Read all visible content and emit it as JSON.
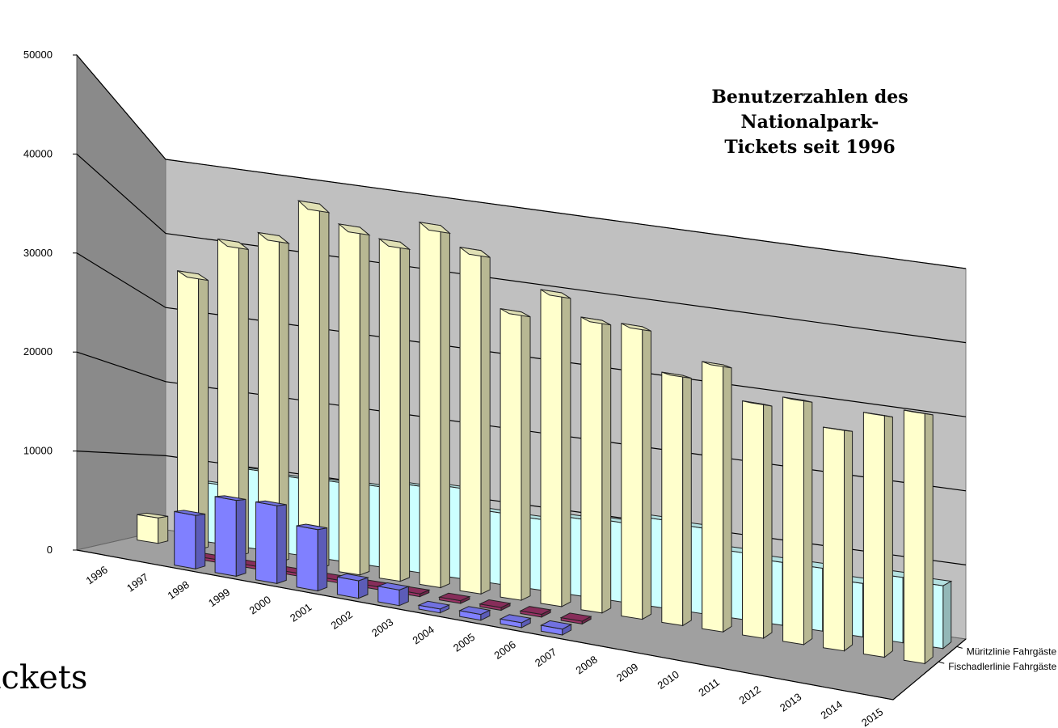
{
  "background_text": "Tickets",
  "chart_data": {
    "type": "bar",
    "variant": "3d-column",
    "title": "Benutzerzahlen des Nationalpark-Tickets seit 1996",
    "title_lines": [
      "Benutzerzahlen des",
      "Nationalpark-",
      "Tickets seit 1996"
    ],
    "categories": [
      "1996",
      "1997",
      "1998",
      "1999",
      "2000",
      "2001",
      "2002",
      "2003",
      "2004",
      "2005",
      "2006",
      "2007",
      "2008",
      "2009",
      "2010",
      "2011",
      "2012",
      "2013",
      "2014",
      "2015"
    ],
    "ylim": [
      0,
      50000
    ],
    "yticks": [
      "0",
      "10000",
      "20000",
      "30000",
      "40000",
      "50000"
    ],
    "grid": true,
    "series": [
      {
        "name": "",
        "color": "#8080ff",
        "values": [
          null,
          null,
          5500,
          7800,
          8000,
          6300,
          1800,
          1600,
          400,
          600,
          500,
          600,
          null,
          null,
          null,
          null,
          null,
          null,
          null,
          null
        ]
      },
      {
        "name": "",
        "color": "#993366",
        "values": [
          null,
          null,
          300,
          300,
          300,
          300,
          300,
          300,
          300,
          300,
          300,
          300,
          null,
          null,
          null,
          null,
          null,
          null,
          null,
          null
        ]
      },
      {
        "name": "Fischadlerlinie Fahrgäste",
        "color": "#ffffcc",
        "values": [
          3000,
          32500,
          37000,
          38500,
          43000,
          41000,
          40000,
          42700,
          40500,
          34000,
          37000,
          34500,
          34500,
          29500,
          31500,
          27600,
          28800,
          26000,
          28500,
          29500
        ]
      },
      {
        "name": "Müritzlinie Fahrgäste",
        "color": "#ccffff",
        "values": [
          null,
          7500,
          10000,
          9800,
          10000,
          10200,
          11000,
          11500,
          9100,
          9000,
          9800,
          10100,
          11200,
          10900,
          8500,
          8000,
          8000,
          6800,
          8300,
          8000
        ]
      }
    ]
  }
}
